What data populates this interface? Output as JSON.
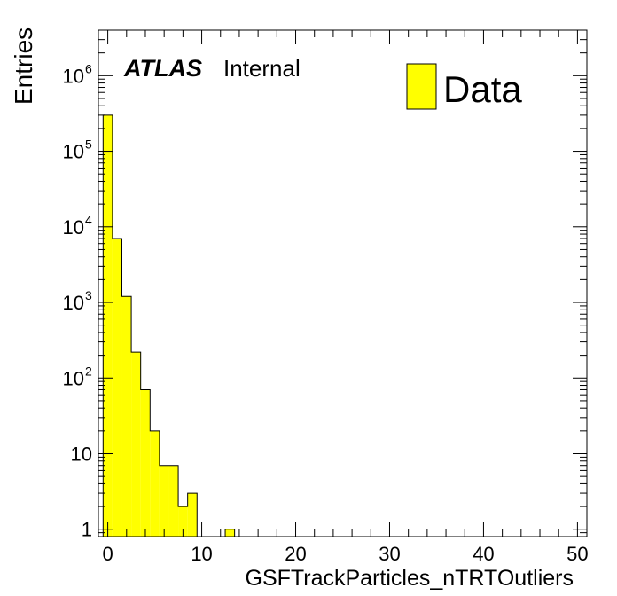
{
  "chart_data": {
    "type": "bar",
    "title": "",
    "xlabel": "GSFTrackParticles_nTRTOutliers",
    "ylabel": "Entries",
    "xlim": [
      -1,
      51
    ],
    "ylim": [
      0.8,
      4000000
    ],
    "log_y": true,
    "bin_width": 1,
    "x": [
      0,
      1,
      2,
      3,
      4,
      5,
      6,
      7,
      8,
      9,
      10,
      11,
      12,
      13
    ],
    "values": [
      300000,
      7000,
      1200,
      220,
      70,
      20,
      7,
      7,
      2,
      3,
      0,
      0,
      0,
      1
    ],
    "x_ticks": [
      0,
      10,
      20,
      30,
      40,
      50
    ],
    "y_ticks": [
      {
        "value": 1,
        "base": "1",
        "exp": ""
      },
      {
        "value": 10,
        "base": "10",
        "exp": ""
      },
      {
        "value": 100,
        "base": "10",
        "exp": "2"
      },
      {
        "value": 1000,
        "base": "10",
        "exp": "3"
      },
      {
        "value": 10000,
        "base": "10",
        "exp": "4"
      },
      {
        "value": 100000,
        "base": "10",
        "exp": "5"
      },
      {
        "value": 1000000,
        "base": "10",
        "exp": "6"
      }
    ],
    "legend": {
      "placement": "top-right",
      "entries": [
        {
          "label": "Data",
          "color": "#ffff00"
        }
      ]
    },
    "atlas_label": {
      "bold": "ATLAS",
      "text": "Internal"
    },
    "fill_color": "#ffff00",
    "line_color": "#000000"
  }
}
